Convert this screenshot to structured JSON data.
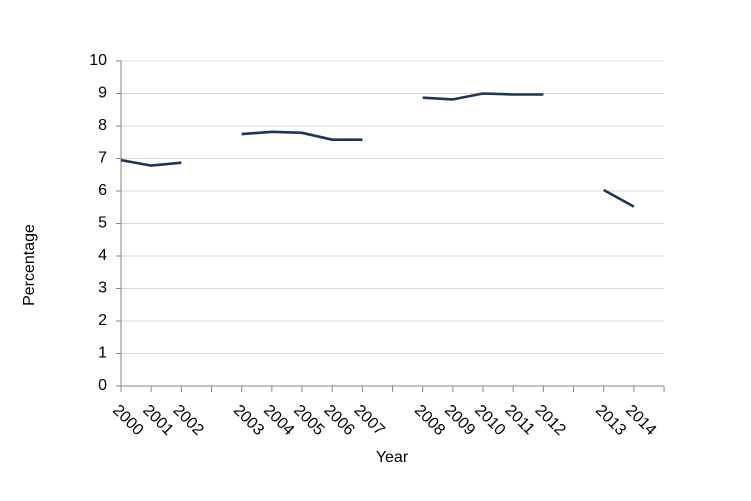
{
  "chart_data": {
    "type": "line",
    "x_label": "Year",
    "y_label": "Percentage",
    "categories": [
      "2000",
      "2001",
      "2002",
      null,
      "2003",
      "2004",
      "2005",
      "2006",
      "2007",
      null,
      "2008",
      "2009",
      "2010",
      "2011",
      "2012",
      null,
      "2013",
      "2014"
    ],
    "values": [
      6.95,
      6.78,
      6.87,
      null,
      7.75,
      7.82,
      7.79,
      7.58,
      7.58,
      null,
      8.87,
      8.82,
      9.0,
      8.97,
      8.97,
      null,
      6.03,
      5.52
    ],
    "color": "#1f3556",
    "ylim": [
      0,
      10
    ],
    "yticks": [
      0,
      1,
      2,
      3,
      4,
      5,
      6,
      7,
      8,
      9,
      10
    ],
    "grid": true
  }
}
